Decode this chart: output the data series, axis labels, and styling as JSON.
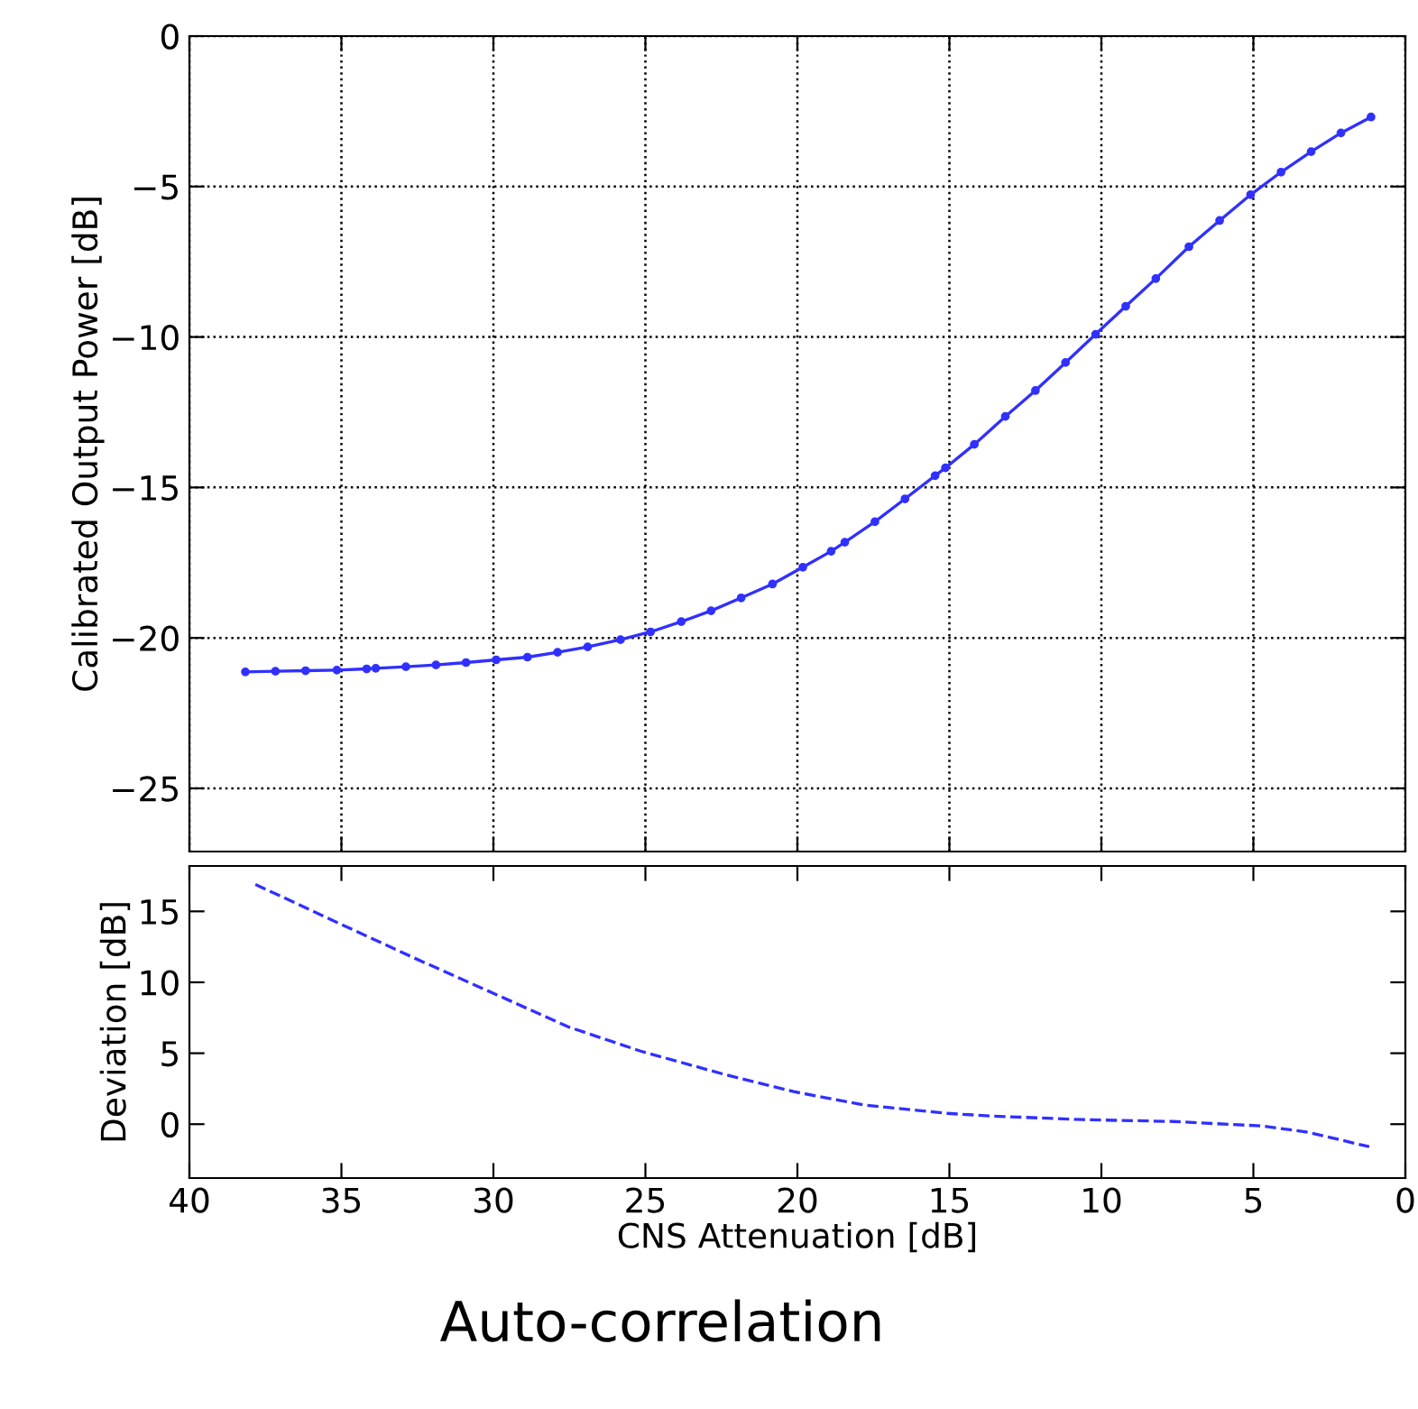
{
  "chart_data": [
    {
      "type": "line",
      "ylabel": "Calibrated Output Power [dB]",
      "xlim": [
        40,
        0
      ],
      "ylim": [
        -27.1,
        0
      ],
      "yticks": [
        -25,
        -20,
        -15,
        -10,
        -5,
        0
      ],
      "xticks": [
        40,
        35,
        30,
        25,
        20,
        15,
        10,
        5,
        0
      ],
      "tick_labels": "y",
      "grid": true,
      "marker": "circle",
      "line_style": "solid",
      "series": [
        {
          "color": "#3030ff",
          "x": [
            38.16,
            37.17,
            36.18,
            35.15,
            34.17,
            33.87,
            32.88,
            31.89,
            30.9,
            29.91,
            28.88,
            27.89,
            26.9,
            25.82,
            24.83,
            23.82,
            22.84,
            21.85,
            20.82,
            19.82,
            18.89,
            18.44,
            17.45,
            16.46,
            15.47,
            15.13,
            14.18,
            13.16,
            12.17,
            11.18,
            10.19,
            9.2,
            8.21,
            7.12,
            6.11,
            5.09,
            4.09,
            3.1,
            2.12,
            1.13
          ],
          "values": [
            -21.13,
            -21.11,
            -21.09,
            -21.07,
            -21.03,
            -21.01,
            -20.96,
            -20.9,
            -20.82,
            -20.73,
            -20.64,
            -20.48,
            -20.3,
            -20.06,
            -19.8,
            -19.46,
            -19.1,
            -18.67,
            -18.21,
            -17.65,
            -17.12,
            -16.82,
            -16.14,
            -15.38,
            -14.61,
            -14.35,
            -13.57,
            -12.64,
            -11.78,
            -10.85,
            -9.91,
            -8.98,
            -8.06,
            -7.0,
            -6.13,
            -5.27,
            -4.52,
            -3.84,
            -3.22,
            -2.69
          ]
        }
      ]
    },
    {
      "type": "line",
      "xlabel": "CNS Attenuation [dB]",
      "ylabel": "Deviation [dB]",
      "xlim": [
        40,
        0
      ],
      "xticks": [
        40,
        35,
        30,
        25,
        20,
        15,
        10,
        5,
        0
      ],
      "ylim": [
        -3.8,
        18.2
      ],
      "yticks": [
        0,
        5,
        10,
        15
      ],
      "grid": false,
      "line_style": "dashed",
      "annotations": [
        "Auto-correlation"
      ],
      "series": [
        {
          "color": "#3030ff",
          "x": [
            37.83,
            34.96,
            32.58,
            30.06,
            27.54,
            25.16,
            22.49,
            20.12,
            17.74,
            15.07,
            13.59,
            10.62,
            7.65,
            4.69,
            3.2,
            1.19
          ],
          "values": [
            16.9,
            14.04,
            11.69,
            9.28,
            6.86,
            5.15,
            3.56,
            2.29,
            1.33,
            0.76,
            0.57,
            0.32,
            0.19,
            -0.13,
            -0.57,
            -1.59
          ]
        }
      ]
    }
  ]
}
